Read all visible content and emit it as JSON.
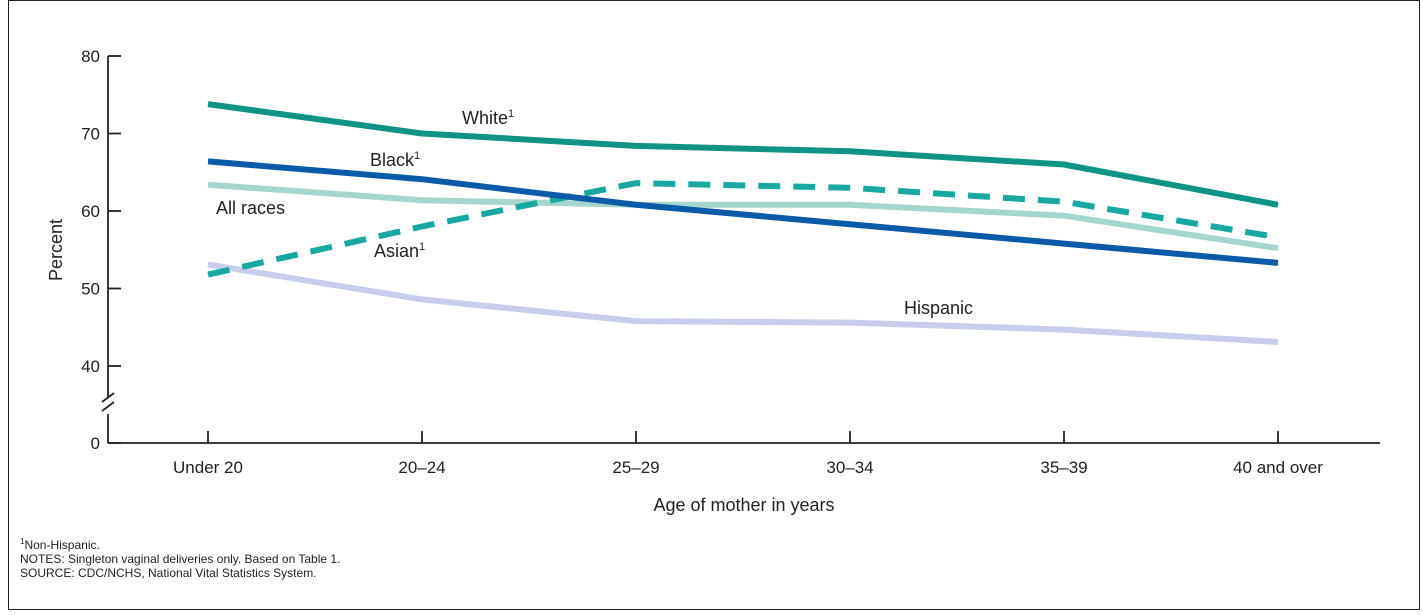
{
  "chart_data": {
    "type": "line",
    "xlabel": "Age of mother in years",
    "ylabel": "Percent",
    "categories": [
      "Under 20",
      "20–24",
      "25–29",
      "30–34",
      "35–39",
      "40 and over"
    ],
    "yticks": [
      "80",
      "70",
      "60",
      "50",
      "40",
      "0"
    ],
    "ylim": [
      40,
      80
    ],
    "axis_break": true,
    "series": [
      {
        "name": "White",
        "superscript": "1",
        "color": "#0e9384",
        "style": "solid",
        "values": [
          73.8,
          70.0,
          68.4,
          67.7,
          66.0,
          60.8
        ]
      },
      {
        "name": "Black",
        "superscript": "1",
        "color": "#0b5aa8",
        "style": "solid",
        "values": [
          66.4,
          64.1,
          60.8,
          58.3,
          55.8,
          53.3
        ]
      },
      {
        "name": "All races",
        "superscript": "",
        "color": "#a6d5cd",
        "style": "solid",
        "values": [
          63.4,
          61.4,
          60.8,
          60.8,
          59.4,
          55.2
        ]
      },
      {
        "name": "Asian",
        "superscript": "1",
        "color": "#19a8a0",
        "style": "dashed",
        "values": [
          51.8,
          58.0,
          63.6,
          63.0,
          61.2,
          56.6
        ]
      },
      {
        "name": "Hispanic",
        "superscript": "",
        "color": "#c7cdea",
        "style": "solid",
        "values": [
          53.1,
          48.6,
          45.8,
          45.6,
          44.7,
          43.1
        ]
      }
    ]
  },
  "notes": {
    "footnote_marker": "1",
    "footnote_text": "Non-Hispanic.",
    "notes_line": "NOTES: Singleton vaginal deliveries only. Based on Table 1.",
    "source_line": "SOURCE: CDC/NCHS, National Vital Statistics System."
  }
}
